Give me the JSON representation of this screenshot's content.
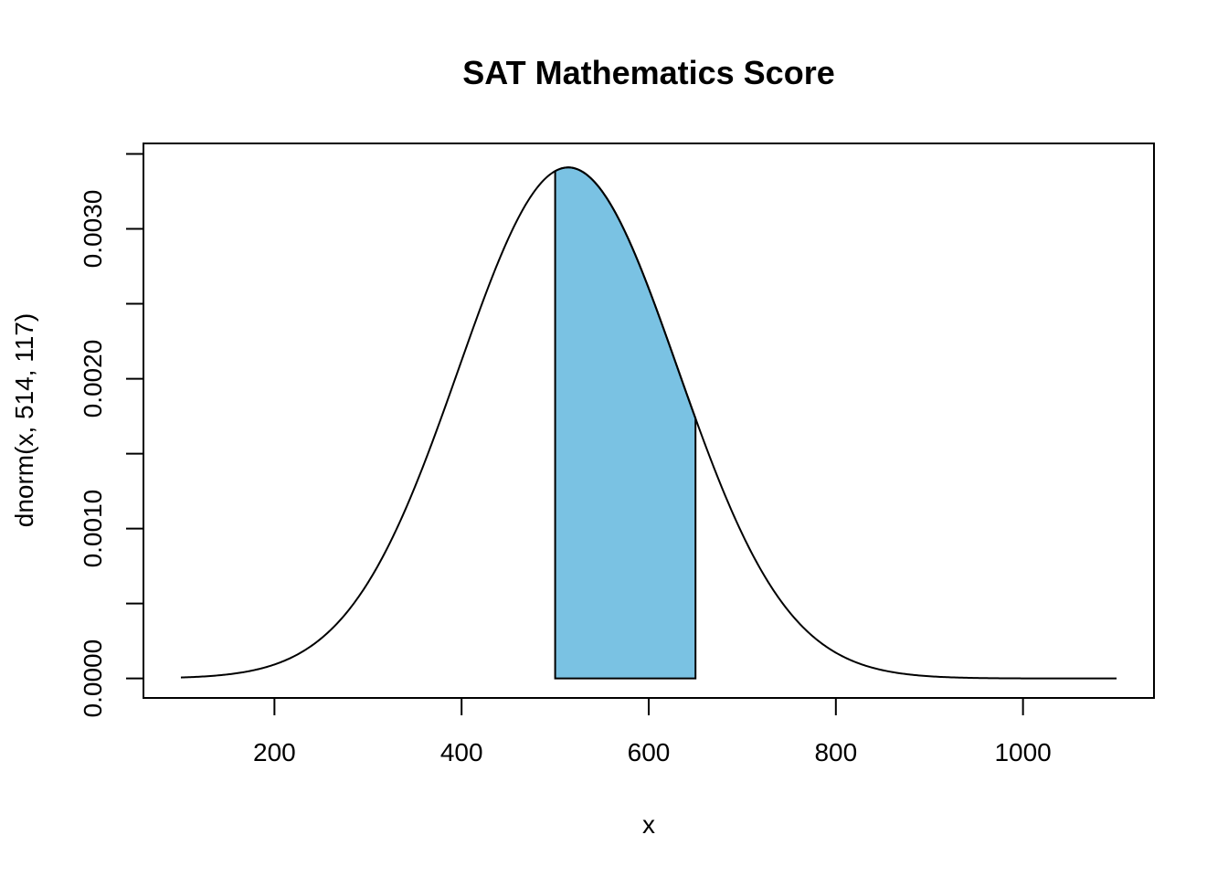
{
  "chart_data": {
    "type": "area",
    "title": "SAT Mathematics Score",
    "xlabel": "x",
    "ylabel": "dnorm(x, 514, 117)",
    "distribution": {
      "name": "normal",
      "mean": 514,
      "sd": 117
    },
    "curve_x_range": [
      100,
      1100
    ],
    "shaded_region": {
      "from": 500,
      "to": 650,
      "color": "#7AC2E3"
    },
    "xlim": [
      60,
      1140
    ],
    "ylim": [
      -0.00013,
      0.00357
    ],
    "x_ticks": [
      200,
      400,
      600,
      800,
      1000
    ],
    "x_tick_labels": [
      "200",
      "400",
      "600",
      "800",
      "1000"
    ],
    "y_ticks": [
      0.0,
      0.0005,
      0.001,
      0.0015,
      0.002,
      0.0025,
      0.003,
      0.0035
    ],
    "y_tick_labels": [
      "0.0000",
      "",
      "0.0010",
      "",
      "0.0020",
      "",
      "0.0030",
      ""
    ],
    "grid": false,
    "legend": "none"
  }
}
